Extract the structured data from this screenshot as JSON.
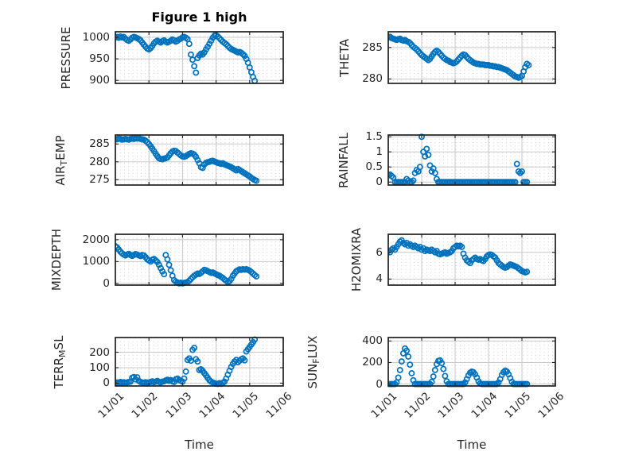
{
  "figure": {
    "title": "Figure 1 high",
    "xlabel": "Time",
    "background": "#ffffff",
    "marker_color": "#0072BD",
    "axis_color": "#1f1f1f",
    "grid_color": "#c9c9c9",
    "minor_grid_color": "#b5b5b5"
  },
  "chart_data": {
    "type": "scatter",
    "marker": "open-circle",
    "grid": "major-solid-plus-minor-dotted",
    "legend": "none",
    "x_unit": "days since 11/01",
    "xlim": [
      0,
      5
    ],
    "x_ticks": {
      "positions": [
        0,
        1,
        2,
        3,
        4,
        5
      ],
      "labels": [
        "11/01",
        "11/02",
        "11/03",
        "11/04",
        "11/05",
        "11/06"
      ]
    },
    "plots": [
      {
        "id": "pressure",
        "col": "left",
        "row": 0,
        "ylabel_text": "PRESSURE",
        "ylabel": [
          {
            "t": "PRESSURE"
          }
        ],
        "yticks": [
          900,
          950,
          1000
        ],
        "ylim": [
          893,
          1013
        ],
        "x0": 0,
        "dx": 0.05,
        "y": [
          1000,
          1001,
          999,
          1002,
          1000,
          1001,
          997,
          994,
          992,
          995,
          999,
          1001,
          1000,
          998,
          996,
          993,
          988,
          983,
          978,
          974,
          972,
          975,
          980,
          986,
          990,
          992,
          990,
          988,
          991,
          993,
          990,
          988,
          990,
          992,
          995,
          993,
          990,
          992,
          995,
          997,
          1000,
          1001,
          999,
          996,
          985,
          960,
          948,
          933,
          918,
          952,
          958,
          962,
          960,
          965,
          972,
          978,
          985,
          992,
          999,
          1004,
          1005,
          1002,
          998,
          994,
          990,
          987,
          984,
          980,
          976,
          973,
          971,
          969,
          967,
          965,
          966,
          964,
          961,
          957,
          950,
          941,
          930,
          919,
          908,
          899
        ]
      },
      {
        "id": "theta",
        "col": "right",
        "row": 0,
        "ylabel_text": "THETA",
        "ylabel": [
          {
            "t": "THETA"
          }
        ],
        "yticks": [
          280,
          285
        ],
        "ylim": [
          279.3,
          287.5
        ],
        "x0": 0,
        "dx": 0.05,
        "y": [
          286.6,
          286.7,
          286.5,
          286.4,
          286.3,
          286.2,
          286.3,
          286.4,
          286.2,
          286.1,
          286.2,
          286.0,
          285.9,
          285.7,
          285.4,
          285.1,
          284.9,
          284.7,
          284.4,
          284.1,
          283.8,
          283.6,
          283.4,
          283.2,
          283.0,
          283.2,
          283.6,
          284.0,
          284.3,
          284.5,
          284.3,
          284.0,
          283.7,
          283.4,
          283.2,
          283.0,
          282.9,
          282.7,
          282.6,
          282.5,
          282.6,
          282.8,
          283.1,
          283.4,
          283.7,
          283.9,
          283.8,
          283.5,
          283.2,
          283.0,
          282.8,
          282.6,
          282.5,
          282.4,
          282.4,
          282.3,
          282.3,
          282.3,
          282.2,
          282.2,
          282.2,
          282.1,
          282.1,
          282.0,
          282.0,
          281.9,
          281.9,
          281.8,
          281.7,
          281.6,
          281.5,
          281.4,
          281.2,
          281.0,
          280.8,
          280.6,
          280.4,
          280.3,
          280.2,
          280.3,
          280.5,
          281.2,
          281.9,
          282.4,
          282.2
        ]
      },
      {
        "id": "airtemp",
        "col": "left",
        "row": 1,
        "ylabel_text": "AIR_TEMP",
        "ylabel": [
          {
            "t": "AIR"
          },
          {
            "t": "T",
            "sub": true
          },
          {
            "t": "EMP"
          }
        ],
        "yticks": [
          275,
          280,
          285
        ],
        "ylim": [
          273.5,
          287.5
        ],
        "x0": 0,
        "dx": 0.05,
        "y": [
          286.4,
          286.3,
          286.5,
          286.4,
          286.2,
          286.3,
          286.4,
          286.3,
          286.2,
          286.4,
          286.5,
          286.4,
          286.6,
          286.5,
          286.6,
          286.4,
          286.3,
          286.2,
          285.9,
          285.5,
          285.0,
          284.4,
          283.7,
          283.0,
          282.3,
          281.6,
          281.0,
          280.8,
          280.7,
          280.9,
          281.0,
          281.2,
          281.8,
          282.4,
          282.9,
          283.1,
          283.0,
          282.6,
          282.2,
          281.8,
          281.5,
          281.4,
          281.6,
          281.9,
          282.2,
          282.4,
          282.3,
          282.0,
          281.4,
          280.5,
          279.6,
          278.5,
          278.3,
          279.3,
          279.7,
          279.9,
          280.0,
          280.2,
          280.3,
          280.1,
          279.9,
          279.7,
          279.6,
          279.4,
          279.6,
          279.3,
          279.1,
          278.9,
          278.7,
          278.5,
          278.2,
          277.9,
          277.6,
          278.0,
          277.7,
          277.4,
          277.1,
          276.8,
          276.5,
          276.2,
          275.9,
          275.5,
          275.2,
          274.9,
          274.7
        ]
      },
      {
        "id": "rainfall",
        "col": "right",
        "row": 1,
        "ylabel_text": "RAINFALL",
        "ylabel": [
          {
            "t": "RAINFALL"
          }
        ],
        "yticks": [
          0,
          0.5,
          1,
          1.5
        ],
        "ylim": [
          -0.1,
          1.56
        ],
        "x0": 0,
        "dx": 0.05,
        "y": [
          0.22,
          0.25,
          0.2,
          0.15,
          0,
          0,
          0,
          0,
          0,
          0,
          0,
          0.1,
          0.05,
          0,
          0,
          0.05,
          0.3,
          0.4,
          0.35,
          0.5,
          1.5,
          1.0,
          0.85,
          1.1,
          0.9,
          0.55,
          0.35,
          0.45,
          0.3,
          0.1,
          0,
          0,
          0,
          0,
          0,
          0,
          0,
          0,
          0,
          0,
          0,
          0,
          0,
          0,
          0,
          0,
          0,
          0,
          0,
          0,
          0,
          0,
          0,
          0,
          0,
          0,
          0,
          0,
          0,
          0,
          0,
          0,
          0,
          0,
          0,
          0,
          0,
          0,
          0,
          0,
          0,
          0,
          0,
          0,
          0,
          0,
          0,
          0.6,
          0.35,
          0.3,
          0.35,
          0,
          0,
          0
        ]
      },
      {
        "id": "mixdepth",
        "col": "left",
        "row": 2,
        "ylabel_text": "MIXDEPTH",
        "ylabel": [
          {
            "t": "MIXDEPTH"
          }
        ],
        "yticks": [
          0,
          1000,
          2000
        ],
        "ylim": [
          -80,
          2250
        ],
        "x0": 0,
        "dx": 0.05,
        "y": [
          1700,
          1650,
          1550,
          1450,
          1380,
          1320,
          1280,
          1320,
          1350,
          1300,
          1260,
          1300,
          1340,
          1320,
          1280,
          1250,
          1300,
          1280,
          1200,
          1100,
          1050,
          1000,
          1080,
          1120,
          1050,
          980,
          850,
          700,
          550,
          420,
          1300,
          1100,
          850,
          600,
          350,
          150,
          80,
          40,
          0,
          30,
          0,
          20,
          40,
          60,
          120,
          200,
          280,
          350,
          400,
          450,
          430,
          480,
          550,
          620,
          600,
          560,
          520,
          480,
          500,
          460,
          420,
          380,
          350,
          300,
          250,
          180,
          120,
          60,
          100,
          200,
          350,
          450,
          550,
          600,
          640,
          620,
          650,
          630,
          650,
          620,
          580,
          520,
          450,
          380,
          320
        ]
      },
      {
        "id": "h2omixra",
        "col": "right",
        "row": 2,
        "ylabel_text": "H2OMIXRA",
        "ylabel": [
          {
            "t": "H2OMIXRA"
          }
        ],
        "yticks": [
          4,
          6
        ],
        "ylim": [
          3.55,
          7.35
        ],
        "x0": 0,
        "dx": 0.05,
        "y": [
          6.1,
          6.0,
          6.2,
          6.3,
          6.2,
          6.4,
          6.6,
          6.8,
          6.9,
          6.7,
          6.6,
          6.7,
          6.5,
          6.6,
          6.5,
          6.4,
          6.5,
          6.4,
          6.3,
          6.4,
          6.2,
          6.3,
          6.1,
          6.2,
          6.15,
          6.1,
          6.2,
          6.1,
          6.0,
          6.1,
          5.9,
          5.85,
          5.9,
          5.95,
          6.0,
          5.9,
          5.95,
          6.0,
          6.1,
          6.3,
          6.4,
          6.5,
          6.45,
          6.5,
          6.4,
          5.9,
          5.6,
          5.4,
          5.3,
          5.2,
          5.4,
          5.5,
          5.6,
          5.5,
          5.45,
          5.5,
          5.4,
          5.35,
          5.5,
          5.7,
          5.8,
          5.85,
          5.8,
          5.7,
          5.6,
          5.4,
          5.2,
          5.1,
          5.0,
          4.9,
          4.85,
          4.9,
          5.0,
          5.1,
          5.05,
          5.0,
          4.95,
          4.9,
          4.8,
          4.7,
          4.6,
          4.55,
          4.5,
          4.55
        ]
      },
      {
        "id": "terrmsl",
        "col": "left",
        "row": 3,
        "ylabel_text": "TERR_MSL",
        "ylabel": [
          {
            "t": "TERR"
          },
          {
            "t": "M",
            "sub": true
          },
          {
            "t": "SL"
          }
        ],
        "yticks": [
          0,
          100,
          200
        ],
        "ylim": [
          -18,
          295
        ],
        "x0": 0,
        "dx": 0.05,
        "y": [
          2,
          5,
          3,
          8,
          4,
          6,
          3,
          5,
          8,
          10,
          35,
          40,
          25,
          38,
          15,
          8,
          5,
          3,
          6,
          4,
          5,
          8,
          12,
          6,
          10,
          15,
          8,
          5,
          10,
          12,
          18,
          22,
          15,
          20,
          12,
          8,
          25,
          30,
          20,
          15,
          10,
          30,
          75,
          150,
          160,
          145,
          215,
          228,
          155,
          140,
          85,
          90,
          80,
          65,
          50,
          35,
          20,
          10,
          5,
          0,
          -3,
          -5,
          0,
          -4,
          2,
          10,
          30,
          55,
          80,
          105,
          125,
          140,
          150,
          135,
          145,
          155,
          160,
          148,
          205,
          220,
          235,
          250,
          265,
          282
        ]
      },
      {
        "id": "sunflux",
        "col": "right",
        "row": 3,
        "ylabel_text": "SUN_FLUX",
        "ylabel": [
          {
            "t": "SUN"
          },
          {
            "t": "F",
            "sub": true
          },
          {
            "t": "LUX"
          }
        ],
        "yticks": [
          0,
          200,
          400
        ],
        "ylim": [
          -18,
          432
        ],
        "x0": 0,
        "dx": 0.05,
        "y": [
          0,
          0,
          0,
          0,
          0,
          15,
          60,
          130,
          210,
          285,
          330,
          310,
          255,
          180,
          100,
          35,
          0,
          0,
          0,
          0,
          0,
          0,
          0,
          0,
          0,
          0,
          20,
          70,
          130,
          185,
          215,
          220,
          195,
          140,
          75,
          25,
          0,
          0,
          0,
          0,
          0,
          0,
          0,
          0,
          0,
          0,
          15,
          45,
          80,
          105,
          115,
          110,
          90,
          60,
          25,
          5,
          0,
          0,
          0,
          0,
          0,
          0,
          0,
          0,
          0,
          0,
          15,
          45,
          85,
          110,
          125,
          115,
          90,
          55,
          20,
          0,
          0,
          0,
          0,
          0,
          0,
          0,
          0,
          0
        ]
      }
    ]
  }
}
